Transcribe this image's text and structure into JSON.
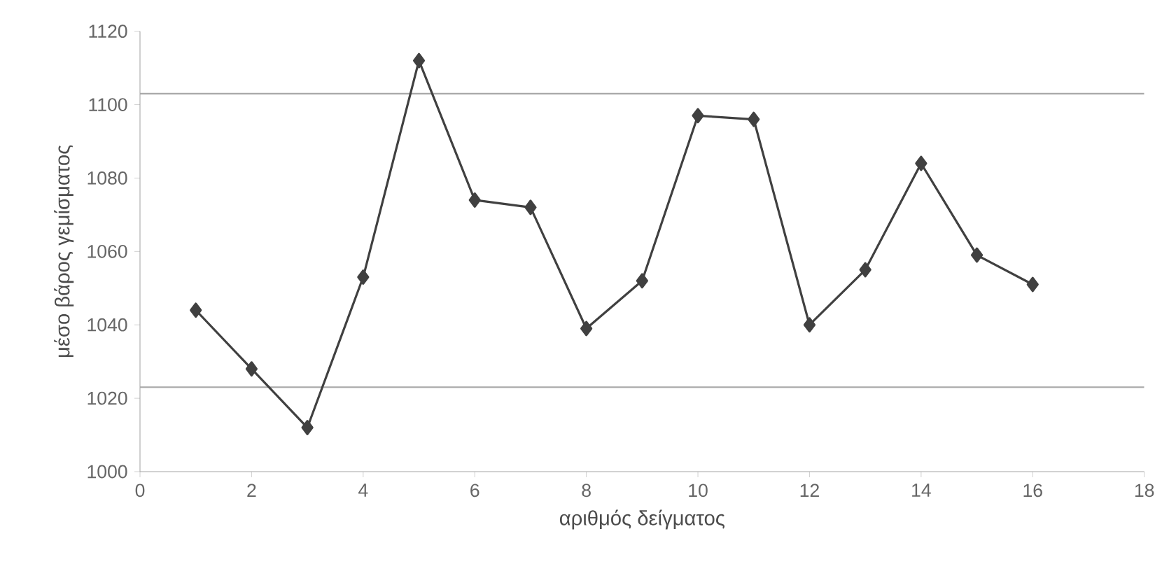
{
  "chart_data": {
    "type": "line",
    "xlabel": "αριθμός δείγματος",
    "ylabel": "μέσο βάρος γεμίσματος",
    "x": [
      1,
      2,
      3,
      4,
      5,
      6,
      7,
      8,
      9,
      10,
      11,
      12,
      13,
      14,
      15,
      16
    ],
    "series": [
      {
        "color": "#404040",
        "values": [
          1044,
          1028,
          1012,
          1053,
          1112,
          1074,
          1072,
          1039,
          1052,
          1097,
          1096,
          1040,
          1055,
          1084,
          1059,
          1051
        ]
      }
    ],
    "xlim": [
      0,
      18
    ],
    "xticks": [
      0,
      2,
      4,
      6,
      8,
      10,
      12,
      14,
      16,
      18
    ],
    "ylim": [
      1000,
      1120
    ],
    "yticks": [
      1000,
      1020,
      1040,
      1060,
      1080,
      1100,
      1120
    ],
    "ref_lines": [
      {
        "axis": "y",
        "value": 1103,
        "color": "#a8a8a8"
      },
      {
        "axis": "y",
        "value": 1023,
        "color": "#a8a8a8"
      }
    ],
    "marker": "diamond",
    "line_style": "solid",
    "grid": false
  }
}
